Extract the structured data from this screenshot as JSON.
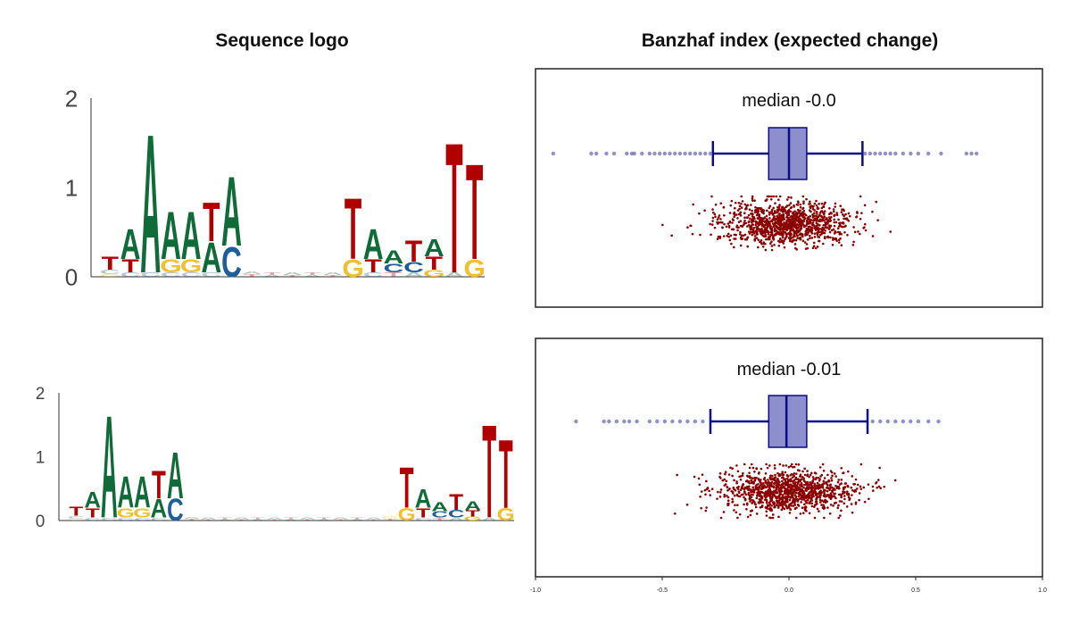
{
  "titles": {
    "left": "Sequence logo",
    "right": "Banzhaf index (expected change)"
  },
  "colors": {
    "A": "#0f6b38",
    "C": "#1f5e9c",
    "G": "#f0c030",
    "T": "#b00000",
    "box_fill": "#8c8fcc",
    "box_line": "#0a0a8a",
    "outlier": "#6a6ab8",
    "scatter": "#8b0000"
  },
  "chart_data": [
    {
      "type": "logo",
      "panel": "top-left",
      "ylim": [
        0,
        2
      ],
      "yticks": [
        "0",
        "1",
        "2"
      ],
      "positions": [
        {
          "T": 0.15,
          "C": 0.05,
          "G": 0.03
        },
        {
          "A": 0.35,
          "T": 0.15,
          "C": 0.05
        },
        {
          "A": 1.6,
          "C": 0.05
        },
        {
          "A": 0.55,
          "G": 0.15,
          "C": 0.05
        },
        {
          "A": 0.55,
          "G": 0.15,
          "C": 0.05
        },
        {
          "T": 0.45,
          "A": 0.35,
          "C": 0.05
        },
        {
          "A": 0.8,
          "C": 0.35
        },
        {
          "T": 0.03,
          "A": 0.03
        },
        {
          "T": 0.03,
          "A": 0.02
        },
        {
          "A": 0.03,
          "T": 0.02
        },
        {
          "T": 0.03,
          "A": 0.02
        },
        {
          "A": 0.03,
          "T": 0.02
        },
        {
          "T": 0.7,
          "G": 0.2
        },
        {
          "A": 0.35,
          "T": 0.15,
          "C": 0.05
        },
        {
          "A": 0.15,
          "C": 0.1,
          "T": 0.05
        },
        {
          "T": 0.25,
          "C": 0.12,
          "A": 0.05
        },
        {
          "A": 0.2,
          "T": 0.15,
          "G": 0.08
        },
        {
          "T": 1.5,
          "A": 0.05
        },
        {
          "T": 1.1,
          "G": 0.2
        }
      ]
    },
    {
      "type": "logo",
      "panel": "bottom-left",
      "ylim": [
        0,
        2
      ],
      "yticks": [
        "0",
        "1",
        "2"
      ],
      "positions": [
        {
          "T": 0.15,
          "C": 0.05,
          "G": 0.03
        },
        {
          "A": 0.25,
          "T": 0.15,
          "C": 0.05
        },
        {
          "A": 1.65,
          "C": 0.05
        },
        {
          "A": 0.5,
          "G": 0.15,
          "C": 0.05
        },
        {
          "A": 0.5,
          "G": 0.15,
          "C": 0.05
        },
        {
          "T": 0.45,
          "A": 0.3,
          "C": 0.05
        },
        {
          "A": 0.75,
          "C": 0.35
        },
        {
          "T": 0.03,
          "A": 0.03
        },
        {
          "A": 0.03,
          "T": 0.02
        },
        {
          "T": 0.03,
          "A": 0.02
        },
        {
          "A": 0.03,
          "T": 0.02
        },
        {
          "T": 0.03,
          "A": 0.02
        },
        {
          "A": 0.03,
          "T": 0.02
        },
        {
          "T": 0.03,
          "A": 0.02
        },
        {
          "A": 0.03,
          "T": 0.02
        },
        {
          "T": 0.03,
          "A": 0.02
        },
        {
          "A": 0.03,
          "T": 0.02
        },
        {
          "T": 0.03,
          "A": 0.02
        },
        {
          "A": 0.03,
          "T": 0.02
        },
        {
          "T": 0.03,
          "G": 0.05
        },
        {
          "T": 0.65,
          "G": 0.2
        },
        {
          "A": 0.3,
          "T": 0.15,
          "C": 0.05
        },
        {
          "A": 0.15,
          "C": 0.1,
          "T": 0.05
        },
        {
          "T": 0.25,
          "C": 0.12,
          "A": 0.05
        },
        {
          "A": 0.15,
          "T": 0.1,
          "G": 0.06
        },
        {
          "T": 1.5,
          "A": 0.05
        },
        {
          "T": 1.1,
          "G": 0.2
        }
      ]
    },
    {
      "type": "box",
      "panel": "top-right",
      "annotation": "median -0.0",
      "xlim": [
        -1.0,
        1.0
      ],
      "box": {
        "q1": -0.08,
        "median": 0.0,
        "q3": 0.07,
        "whisker_low": -0.3,
        "whisker_high": 0.29
      },
      "outliers": [
        -0.93,
        -0.78,
        -0.76,
        -0.72,
        -0.69,
        -0.64,
        -0.62,
        -0.61,
        -0.58,
        -0.55,
        -0.53,
        -0.51,
        -0.49,
        -0.47,
        -0.45,
        -0.43,
        -0.41,
        -0.39,
        -0.37,
        -0.35,
        -0.33,
        -0.31,
        0.3,
        0.32,
        0.34,
        0.36,
        0.38,
        0.4,
        0.42,
        0.45,
        0.48,
        0.51,
        0.55,
        0.6,
        0.7,
        0.72,
        0.74
      ],
      "scatter": {
        "n": 1100,
        "center": -0.01,
        "spread": 0.13,
        "min": -0.93,
        "max": 0.74
      }
    },
    {
      "type": "box",
      "panel": "bottom-right",
      "annotation": "median -0.01",
      "xlim": [
        -1.0,
        1.0
      ],
      "xticks": [
        "-1.0",
        "-0.5",
        "0.0",
        "0.5",
        "1.0"
      ],
      "box": {
        "q1": -0.08,
        "median": -0.01,
        "q3": 0.07,
        "whisker_low": -0.31,
        "whisker_high": 0.31
      },
      "outliers": [
        -0.84,
        -0.73,
        -0.71,
        -0.68,
        -0.65,
        -0.63,
        -0.6,
        -0.55,
        -0.52,
        -0.49,
        -0.46,
        -0.43,
        -0.4,
        -0.37,
        -0.34,
        0.33,
        0.36,
        0.39,
        0.42,
        0.45,
        0.48,
        0.51,
        0.55,
        0.59
      ],
      "scatter": {
        "n": 1100,
        "center": -0.01,
        "spread": 0.13,
        "min": -0.84,
        "max": 0.6
      }
    }
  ]
}
